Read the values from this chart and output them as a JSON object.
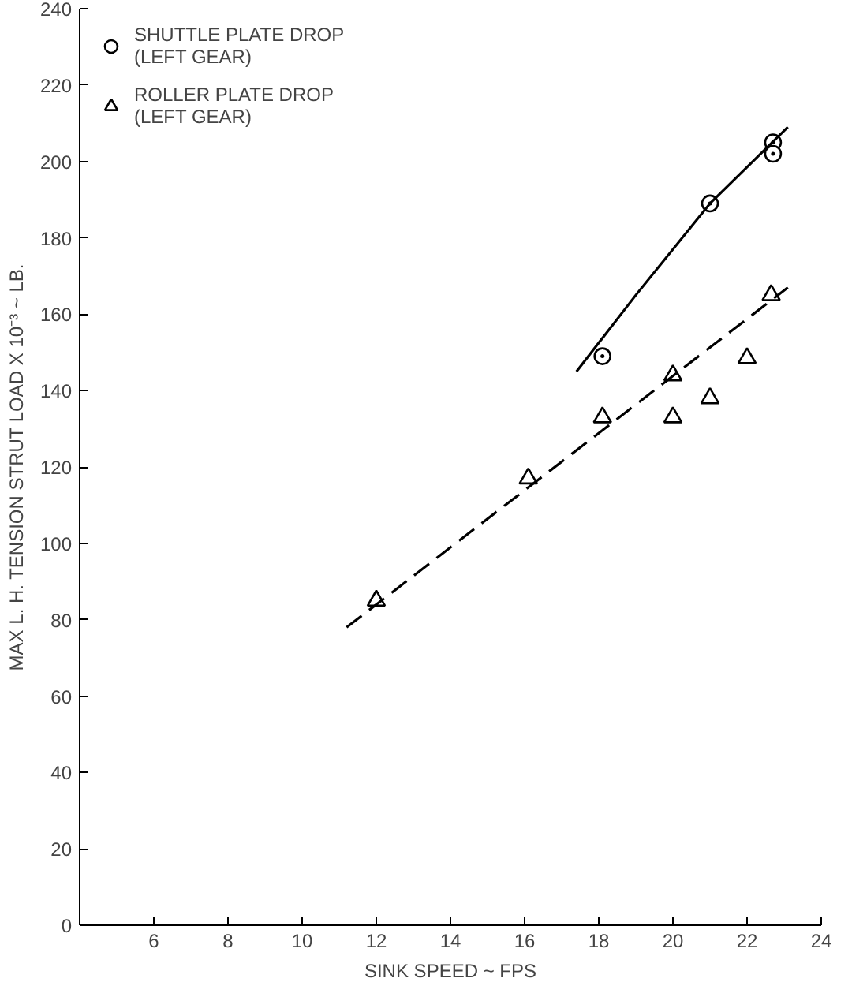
{
  "chart_data": {
    "type": "scatter",
    "xlabel": "SINK SPEED ~ FPS",
    "ylabel": "MAX L. H. TENSION STRUT LOAD X 10⁻³ ~ LB.",
    "xlim": [
      4,
      24
    ],
    "xticks": [
      6,
      8,
      10,
      12,
      14,
      16,
      18,
      20,
      22,
      24
    ],
    "ylim": [
      0,
      240
    ],
    "yticks": [
      0,
      20,
      40,
      60,
      80,
      100,
      120,
      140,
      160,
      180,
      200,
      220,
      240
    ],
    "grid": false,
    "legend": "top left",
    "series": [
      {
        "name": "SHUTTLE PLATE DROP\n(LEFT GEAR)",
        "color": "#000000",
        "marker": "circle",
        "x": [
          18.1,
          21.0,
          22.7,
          22.7
        ],
        "values": [
          149,
          189,
          205,
          202
        ]
      },
      {
        "name": "ROLLER PLATE DROP\n(LEFT GEAR)",
        "color": "#000000",
        "marker": "triangle",
        "x": [
          12.0,
          16.1,
          18.1,
          20.0,
          20.0,
          21.0,
          22.0,
          22.65
        ],
        "values": [
          85,
          117,
          133,
          144,
          133,
          138,
          148.5,
          165
        ]
      },
      {
        "type": "line",
        "color": "#000000",
        "line_style": "solid",
        "x": [
          17.4,
          19.0,
          21.0,
          23.1
        ],
        "values": [
          145,
          165,
          189,
          209
        ]
      },
      {
        "type": "line",
        "color": "#000000",
        "line_style": "dashed",
        "x": [
          11.2,
          23.1
        ],
        "values": [
          78,
          167
        ]
      }
    ]
  }
}
